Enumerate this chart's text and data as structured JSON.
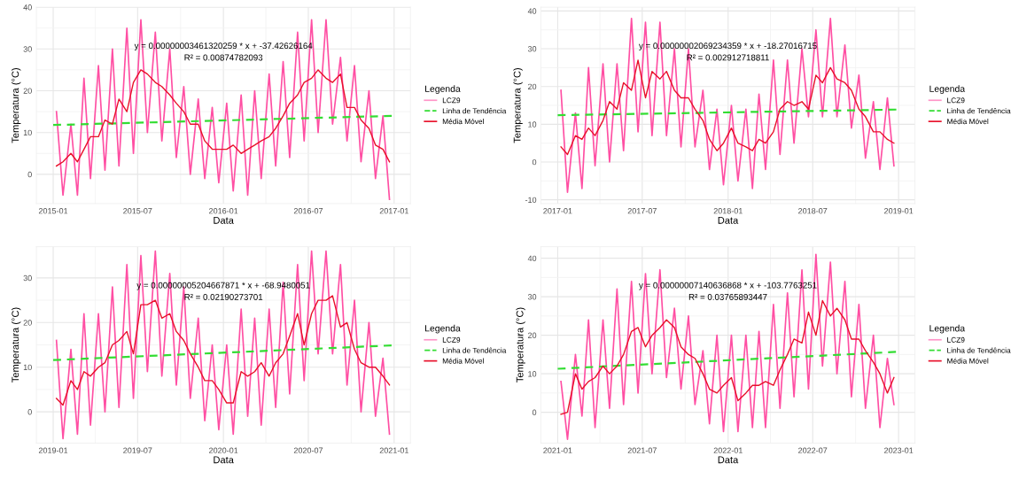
{
  "chart_data": [
    {
      "type": "line",
      "xlabel": "Data",
      "ylabel": "Temperatura (°C)",
      "legend_title": "Legenda",
      "legend": "right",
      "grid": true,
      "marker": "none",
      "annotations": [
        "y = 0.00000003461320259 * x + -37.42626164",
        "R² = 0.00874782093"
      ],
      "xlim": [
        "2014-11-26",
        "2017-02-05"
      ],
      "xticks": [
        "2015-01",
        "2015-07",
        "2016-01",
        "2016-07",
        "2017-01"
      ],
      "ylim": [
        -7,
        40
      ],
      "yticks": [
        0,
        10,
        20,
        30,
        40
      ],
      "x": [
        "2015-01-08",
        "2015-01-22",
        "2015-02-08",
        "2015-02-22",
        "2015-03-08",
        "2015-03-22",
        "2015-04-08",
        "2015-04-22",
        "2015-05-08",
        "2015-05-22",
        "2015-06-08",
        "2015-06-22",
        "2015-07-08",
        "2015-07-22",
        "2015-08-08",
        "2015-08-22",
        "2015-09-08",
        "2015-09-22",
        "2015-10-08",
        "2015-10-22",
        "2015-11-08",
        "2015-11-22",
        "2015-12-08",
        "2015-12-22",
        "2016-01-08",
        "2016-01-22",
        "2016-02-08",
        "2016-02-22",
        "2016-03-08",
        "2016-03-22",
        "2016-04-08",
        "2016-04-22",
        "2016-05-08",
        "2016-05-22",
        "2016-06-08",
        "2016-06-22",
        "2016-07-08",
        "2016-07-22",
        "2016-08-08",
        "2016-08-22",
        "2016-09-08",
        "2016-09-22",
        "2016-10-08",
        "2016-10-22",
        "2016-11-08",
        "2016-11-22",
        "2016-12-08",
        "2016-12-22"
      ],
      "series": [
        {
          "name": "LCZ9",
          "type": "line",
          "line_style": "solid",
          "color": "#ff4fa3",
          "values": [
            15,
            -5,
            12,
            -5,
            23,
            -1,
            26,
            1,
            30,
            2,
            35,
            5,
            37,
            10,
            34,
            8,
            30,
            4,
            21,
            0,
            18,
            -1,
            16,
            -2,
            17,
            -4,
            19,
            -5,
            20,
            -1,
            24,
            2,
            27,
            4,
            34,
            8,
            37,
            10,
            37,
            12,
            28,
            8,
            26,
            3,
            20,
            -1,
            14,
            -6
          ]
        },
        {
          "name": "Linha de Tendência",
          "type": "line",
          "line_style": "dashed",
          "color": "#33dd33",
          "x": [
            "2015-01-01",
            "2016-12-31"
          ],
          "values": [
            11.8,
            14.0
          ]
        },
        {
          "name": "Média Móvel",
          "type": "line",
          "line_style": "solid",
          "color": "#e8102a",
          "values": [
            2,
            3,
            5,
            3,
            6,
            9,
            9,
            13,
            12,
            18,
            15,
            22,
            25,
            24,
            22,
            21,
            19,
            17,
            15,
            12,
            12,
            8,
            6,
            6,
            6,
            7,
            5,
            6,
            7,
            8,
            9,
            11,
            14,
            17,
            19,
            22,
            23,
            25,
            23,
            22,
            24,
            16,
            16,
            13,
            11,
            7,
            6,
            3
          ]
        }
      ]
    },
    {
      "type": "line",
      "xlabel": "Data",
      "ylabel": "Temperatura (°C)",
      "legend_title": "Legenda",
      "legend": "right",
      "grid": true,
      "marker": "none",
      "annotations": [
        "y = 0.00000002069234359 * x + -18.27016715",
        "R² = 0.002912718811"
      ],
      "xlim": [
        "2016-11-26",
        "2019-02-05"
      ],
      "xticks": [
        "2017-01",
        "2017-07",
        "2018-01",
        "2018-07",
        "2019-01"
      ],
      "ylim": [
        -11,
        41
      ],
      "yticks": [
        -10,
        0,
        10,
        20,
        30,
        40
      ],
      "x": [
        "2017-01-08",
        "2017-01-22",
        "2017-02-08",
        "2017-02-22",
        "2017-03-08",
        "2017-03-22",
        "2017-04-08",
        "2017-04-22",
        "2017-05-08",
        "2017-05-22",
        "2017-06-08",
        "2017-06-22",
        "2017-07-08",
        "2017-07-22",
        "2017-08-08",
        "2017-08-22",
        "2017-09-08",
        "2017-09-22",
        "2017-10-08",
        "2017-10-22",
        "2017-11-08",
        "2017-11-22",
        "2017-12-08",
        "2017-12-22",
        "2018-01-08",
        "2018-01-22",
        "2018-02-08",
        "2018-02-22",
        "2018-03-08",
        "2018-03-22",
        "2018-04-08",
        "2018-04-22",
        "2018-05-08",
        "2018-05-22",
        "2018-06-08",
        "2018-06-22",
        "2018-07-08",
        "2018-07-22",
        "2018-08-08",
        "2018-08-22",
        "2018-09-08",
        "2018-09-22",
        "2018-10-08",
        "2018-10-22",
        "2018-11-08",
        "2018-11-22",
        "2018-12-08",
        "2018-12-22"
      ],
      "series": [
        {
          "name": "LCZ9",
          "type": "line",
          "line_style": "solid",
          "color": "#ff4fa3",
          "values": [
            19,
            -8,
            13,
            -7,
            25,
            -1,
            26,
            0,
            26,
            3,
            38,
            8,
            37,
            7,
            37,
            7,
            30,
            4,
            30,
            4,
            19,
            -2,
            14,
            -6,
            15,
            -5,
            14,
            -7,
            18,
            -2,
            27,
            2,
            27,
            5,
            30,
            12,
            35,
            12,
            38,
            12,
            31,
            9,
            23,
            1,
            16,
            -2,
            17,
            -1
          ]
        },
        {
          "name": "Linha de Tendência",
          "type": "line",
          "line_style": "dashed",
          "color": "#33dd33",
          "x": [
            "2017-01-01",
            "2018-12-31"
          ],
          "values": [
            12.4,
            13.9
          ]
        },
        {
          "name": "Média Móvel",
          "type": "line",
          "line_style": "solid",
          "color": "#e8102a",
          "values": [
            4,
            2,
            7,
            6,
            9,
            7,
            11,
            16,
            14,
            21,
            19,
            27,
            17,
            24,
            22,
            24,
            19,
            17,
            17,
            14,
            11,
            6,
            3,
            5,
            9,
            5,
            4,
            3,
            6,
            5,
            8,
            14,
            16,
            15,
            16,
            14,
            23,
            21,
            25,
            22,
            21,
            19,
            14,
            12,
            8,
            8,
            6,
            5
          ]
        }
      ]
    },
    {
      "type": "line",
      "xlabel": "Data",
      "ylabel": "Temperatura (°C)",
      "legend_title": "Legenda",
      "legend": "right",
      "grid": true,
      "marker": "none",
      "annotations": [
        "y = 0.00000005204667871 * x + -68.9480051",
        "R² = 0.02190273701"
      ],
      "xlim": [
        "2018-11-26",
        "2021-02-05"
      ],
      "xticks": [
        "2019-01",
        "2019-07",
        "2020-01",
        "2020-07",
        "2021-01"
      ],
      "ylim": [
        -7,
        37
      ],
      "yticks": [
        0,
        10,
        20,
        30
      ],
      "x": [
        "2019-01-08",
        "2019-01-22",
        "2019-02-08",
        "2019-02-22",
        "2019-03-08",
        "2019-03-22",
        "2019-04-08",
        "2019-04-22",
        "2019-05-08",
        "2019-05-22",
        "2019-06-08",
        "2019-06-22",
        "2019-07-08",
        "2019-07-22",
        "2019-08-08",
        "2019-08-22",
        "2019-09-08",
        "2019-09-22",
        "2019-10-08",
        "2019-10-22",
        "2019-11-08",
        "2019-11-22",
        "2019-12-08",
        "2019-12-22",
        "2020-01-08",
        "2020-01-22",
        "2020-02-08",
        "2020-02-22",
        "2020-03-08",
        "2020-03-22",
        "2020-04-08",
        "2020-04-22",
        "2020-05-08",
        "2020-05-22",
        "2020-06-08",
        "2020-06-22",
        "2020-07-08",
        "2020-07-22",
        "2020-08-08",
        "2020-08-22",
        "2020-09-08",
        "2020-09-22",
        "2020-10-08",
        "2020-10-22",
        "2020-11-08",
        "2020-11-22",
        "2020-12-08",
        "2020-12-22"
      ],
      "series": [
        {
          "name": "LCZ9",
          "type": "line",
          "line_style": "solid",
          "color": "#ff4fa3",
          "values": [
            16,
            -6,
            14,
            -5,
            22,
            -3,
            22,
            0,
            28,
            1,
            33,
            3,
            35,
            9,
            36,
            8,
            31,
            6,
            28,
            3,
            21,
            -2,
            15,
            -4,
            15,
            -5,
            23,
            -1,
            21,
            -3,
            23,
            1,
            29,
            4,
            33,
            7,
            36,
            13,
            36,
            13,
            33,
            6,
            25,
            0,
            20,
            -1,
            12,
            -5
          ]
        },
        {
          "name": "Linha de Tendência",
          "type": "line",
          "line_style": "dashed",
          "color": "#33dd33",
          "x": [
            "2019-01-01",
            "2020-12-31"
          ],
          "values": [
            11.6,
            14.9
          ]
        },
        {
          "name": "Média Móvel",
          "type": "line",
          "line_style": "solid",
          "color": "#e8102a",
          "values": [
            3,
            1.5,
            7,
            5,
            9,
            8,
            10,
            11,
            15,
            16,
            18,
            13,
            24,
            24,
            25,
            21,
            22,
            18,
            16,
            13,
            10,
            7,
            7,
            5,
            2,
            2,
            9,
            8,
            9,
            11,
            8,
            11,
            13,
            17,
            22,
            15,
            22,
            25,
            25,
            26,
            19,
            20,
            14,
            11,
            10,
            10,
            8,
            6
          ]
        }
      ]
    },
    {
      "type": "line",
      "xlabel": "Data",
      "ylabel": "Temperatura (°C)",
      "legend_title": "Legenda",
      "legend": "right",
      "grid": true,
      "marker": "none",
      "annotations": [
        "y = 0.00000007140636868 * x + -103.7763251",
        "R² = 0.03765893447"
      ],
      "xlim": [
        "2020-11-26",
        "2023-02-05"
      ],
      "xticks": [
        "2021-01",
        "2021-07",
        "2022-01",
        "2022-07",
        "2023-01"
      ],
      "ylim": [
        -8,
        43
      ],
      "yticks": [
        0,
        10,
        20,
        30,
        40
      ],
      "x": [
        "2021-01-08",
        "2021-01-22",
        "2021-02-08",
        "2021-02-22",
        "2021-03-08",
        "2021-03-22",
        "2021-04-08",
        "2021-04-22",
        "2021-05-08",
        "2021-05-22",
        "2021-06-08",
        "2021-06-22",
        "2021-07-08",
        "2021-07-22",
        "2021-08-08",
        "2021-08-22",
        "2021-09-08",
        "2021-09-22",
        "2021-10-08",
        "2021-10-22",
        "2021-11-08",
        "2021-11-22",
        "2021-12-08",
        "2021-12-22",
        "2022-01-08",
        "2022-01-22",
        "2022-02-08",
        "2022-02-22",
        "2022-03-08",
        "2022-03-22",
        "2022-04-08",
        "2022-04-22",
        "2022-05-08",
        "2022-05-22",
        "2022-06-08",
        "2022-06-22",
        "2022-07-08",
        "2022-07-22",
        "2022-08-08",
        "2022-08-22",
        "2022-09-08",
        "2022-09-22",
        "2022-10-08",
        "2022-10-22",
        "2022-11-08",
        "2022-11-22",
        "2022-12-08",
        "2022-12-22"
      ],
      "series": [
        {
          "name": "LCZ9",
          "type": "line",
          "line_style": "solid",
          "color": "#ff4fa3",
          "values": [
            8,
            -7,
            15,
            -1,
            24,
            -4,
            24,
            1,
            32,
            2,
            34,
            5,
            36,
            10,
            37,
            9,
            27,
            6,
            25,
            2,
            16,
            -3,
            20,
            -5,
            20,
            -5,
            20,
            -4,
            21,
            -4,
            28,
            1,
            31,
            4,
            37,
            6,
            41,
            12,
            39,
            10,
            34,
            4,
            28,
            1,
            20,
            -4,
            14,
            2
          ]
        },
        {
          "name": "Linha de Tendência",
          "type": "line",
          "line_style": "dashed",
          "color": "#33dd33",
          "x": [
            "2021-01-01",
            "2022-12-31"
          ],
          "values": [
            11.3,
            15.7
          ]
        },
        {
          "name": "Média Móvel",
          "type": "line",
          "line_style": "solid",
          "color": "#e8102a",
          "values": [
            -0.5,
            0,
            10,
            6,
            8,
            9,
            12,
            10,
            12,
            15,
            21,
            22,
            17,
            20,
            22,
            24,
            22,
            17,
            15,
            14,
            10,
            6,
            5,
            7,
            9,
            3,
            5,
            7,
            7,
            8,
            7,
            11,
            15,
            19,
            18,
            26,
            20,
            29,
            25,
            27,
            24,
            19,
            19,
            16,
            13,
            10,
            5,
            9
          ]
        }
      ]
    }
  ]
}
